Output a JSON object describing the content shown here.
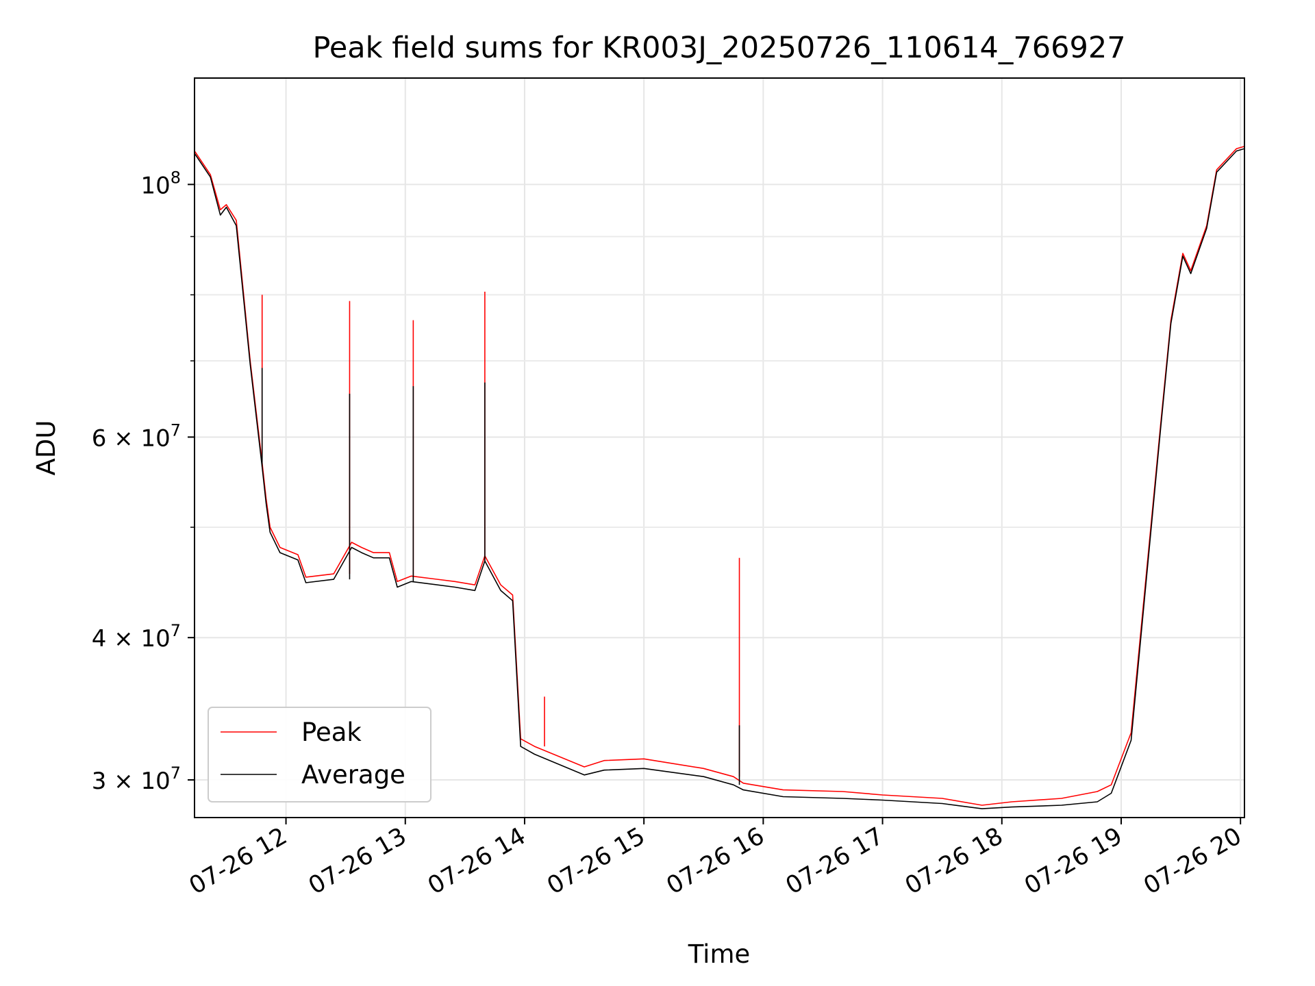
{
  "chart_data": {
    "type": "line",
    "title": "Peak field sums for KR003J_20250726_110614_766927",
    "xlabel": "Time",
    "ylabel": "ADU",
    "yscale": "log",
    "ylim": [
      27800000,
      124000000
    ],
    "xlim": [
      "2025-07-26 11:14",
      "2025-07-26 20:02"
    ],
    "grid": true,
    "legend_position": "lower-left",
    "x_ticks": [
      "2025-07-26 12:00",
      "2025-07-26 13:00",
      "2025-07-26 14:00",
      "2025-07-26 15:00",
      "2025-07-26 16:00",
      "2025-07-26 17:00",
      "2025-07-26 18:00",
      "2025-07-26 19:00",
      "2025-07-26 20:00"
    ],
    "x_tick_labels": [
      "07-26 12",
      "07-26 13",
      "07-26 14",
      "07-26 15",
      "07-26 16",
      "07-26 17",
      "07-26 18",
      "07-26 19",
      "07-26 20"
    ],
    "y_ticks": [
      {
        "value": 100000000,
        "base": "10",
        "exp": "8"
      },
      {
        "value": 60000000,
        "base": "6 × 10",
        "exp": "7"
      },
      {
        "value": 40000000,
        "base": "4 × 10",
        "exp": "7"
      },
      {
        "value": 30000000,
        "base": "3 × 10",
        "exp": "7"
      }
    ],
    "y_minor_ticks": [
      90000000,
      80000000,
      70000000,
      50000000
    ],
    "series": [
      {
        "name": "Peak",
        "color": "#ff0000",
        "x": [
          "2025-07-26 11:14",
          "2025-07-26 11:22",
          "2025-07-26 11:27",
          "2025-07-26 11:30",
          "2025-07-26 11:35",
          "2025-07-26 11:42",
          "2025-07-26 11:48",
          "2025-07-26 11:50",
          "2025-07-26 11:52",
          "2025-07-26 11:57",
          "2025-07-26 12:06",
          "2025-07-26 12:10",
          "2025-07-26 12:24",
          "2025-07-26 12:33",
          "2025-07-26 12:38",
          "2025-07-26 12:44",
          "2025-07-26 12:52",
          "2025-07-26 12:56",
          "2025-07-26 13:03",
          "2025-07-26 13:25",
          "2025-07-26 13:35",
          "2025-07-26 13:40",
          "2025-07-26 13:48",
          "2025-07-26 13:54",
          "2025-07-26 13:58",
          "2025-07-26 14:05",
          "2025-07-26 14:30",
          "2025-07-26 14:40",
          "2025-07-26 15:00",
          "2025-07-26 15:30",
          "2025-07-26 15:45",
          "2025-07-26 15:50",
          "2025-07-26 16:10",
          "2025-07-26 16:40",
          "2025-07-26 17:00",
          "2025-07-26 17:30",
          "2025-07-26 17:50",
          "2025-07-26 18:05",
          "2025-07-26 18:30",
          "2025-07-26 18:48",
          "2025-07-26 18:55",
          "2025-07-26 19:05",
          "2025-07-26 19:20",
          "2025-07-26 19:25",
          "2025-07-26 19:31",
          "2025-07-26 19:35",
          "2025-07-26 19:43",
          "2025-07-26 19:48",
          "2025-07-26 19:58",
          "2025-07-26 20:02"
        ],
        "values": [
          107000000,
          102000000,
          95000000,
          96000000,
          93000000,
          70000000,
          57000000,
          53000000,
          50000000,
          48000000,
          47300000,
          45200000,
          45500000,
          48500000,
          48000000,
          47500000,
          47500000,
          44800000,
          45300000,
          44800000,
          44500000,
          47200000,
          44500000,
          43600000,
          32600000,
          32100000,
          30800000,
          31200000,
          31300000,
          30700000,
          30200000,
          29800000,
          29400000,
          29300000,
          29100000,
          28900000,
          28500000,
          28700000,
          28900000,
          29300000,
          29700000,
          33000000,
          62000000,
          76000000,
          87000000,
          84000000,
          92000000,
          103000000,
          107500000,
          108000000
        ],
        "spikes": [
          {
            "x": "2025-07-26 11:48",
            "value": 80000000
          },
          {
            "x": "2025-07-26 12:32",
            "value": 79000000
          },
          {
            "x": "2025-07-26 13:04",
            "value": 76000000
          },
          {
            "x": "2025-07-26 13:40",
            "value": 80500000
          },
          {
            "x": "2025-07-26 14:10",
            "value": 35500000
          },
          {
            "x": "2025-07-26 15:48",
            "value": 47000000
          }
        ]
      },
      {
        "name": "Average",
        "color": "#000000",
        "x": [
          "2025-07-26 11:14",
          "2025-07-26 11:22",
          "2025-07-26 11:27",
          "2025-07-26 11:30",
          "2025-07-26 11:35",
          "2025-07-26 11:42",
          "2025-07-26 11:48",
          "2025-07-26 11:50",
          "2025-07-26 11:52",
          "2025-07-26 11:57",
          "2025-07-26 12:06",
          "2025-07-26 12:10",
          "2025-07-26 12:24",
          "2025-07-26 12:33",
          "2025-07-26 12:38",
          "2025-07-26 12:44",
          "2025-07-26 12:52",
          "2025-07-26 12:56",
          "2025-07-26 13:03",
          "2025-07-26 13:25",
          "2025-07-26 13:35",
          "2025-07-26 13:40",
          "2025-07-26 13:48",
          "2025-07-26 13:54",
          "2025-07-26 13:58",
          "2025-07-26 14:05",
          "2025-07-26 14:30",
          "2025-07-26 14:40",
          "2025-07-26 15:00",
          "2025-07-26 15:30",
          "2025-07-26 15:45",
          "2025-07-26 15:50",
          "2025-07-26 16:10",
          "2025-07-26 16:40",
          "2025-07-26 17:00",
          "2025-07-26 17:30",
          "2025-07-26 17:50",
          "2025-07-26 18:05",
          "2025-07-26 18:30",
          "2025-07-26 18:48",
          "2025-07-26 18:55",
          "2025-07-26 19:05",
          "2025-07-26 19:20",
          "2025-07-26 19:25",
          "2025-07-26 19:31",
          "2025-07-26 19:35",
          "2025-07-26 19:43",
          "2025-07-26 19:48",
          "2025-07-26 19:58",
          "2025-07-26 20:02"
        ],
        "values": [
          106500000,
          101500000,
          94000000,
          95500000,
          92000000,
          69500000,
          56500000,
          52500000,
          49500000,
          47500000,
          46800000,
          44700000,
          45000000,
          48000000,
          47500000,
          47000000,
          47000000,
          44300000,
          44800000,
          44300000,
          44000000,
          46700000,
          44000000,
          43100000,
          32100000,
          31600000,
          30300000,
          30600000,
          30700000,
          30200000,
          29700000,
          29400000,
          29000000,
          28900000,
          28800000,
          28600000,
          28300000,
          28400000,
          28500000,
          28700000,
          29200000,
          32500000,
          61500000,
          75500000,
          86500000,
          83500000,
          91500000,
          102500000,
          107000000,
          107500000
        ],
        "spikes": [
          {
            "x": "2025-07-26 11:48",
            "value": 69000000
          },
          {
            "x": "2025-07-26 12:32",
            "value": 65500000
          },
          {
            "x": "2025-07-26 13:04",
            "value": 66500000
          },
          {
            "x": "2025-07-26 13:40",
            "value": 67000000
          },
          {
            "x": "2025-07-26 15:48",
            "value": 33500000
          }
        ]
      }
    ]
  }
}
